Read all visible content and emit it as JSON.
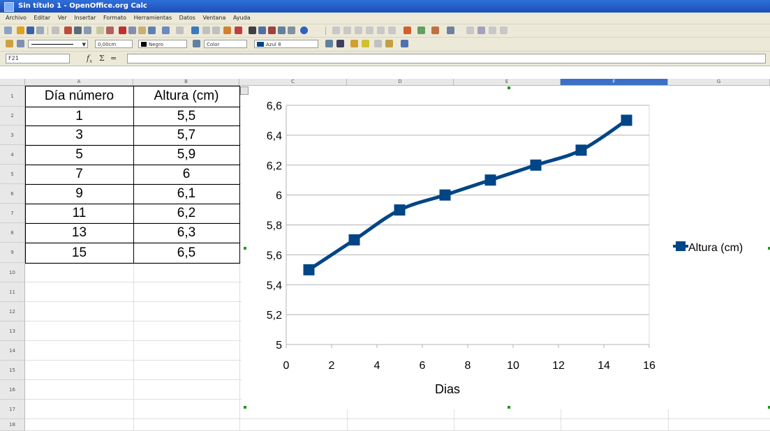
{
  "window": {
    "title": "Sin título 1 - OpenOffice.org Calc"
  },
  "menu": [
    "Archivo",
    "Editar",
    "Ver",
    "Insertar",
    "Formato",
    "Herramientas",
    "Datos",
    "Ventana",
    "Ayuda"
  ],
  "format_toolbar": {
    "line_width": "0,00cm",
    "line_color": "Negro",
    "area_mode": "Color",
    "area_color": "Azul 8"
  },
  "formula_bar": {
    "name_box": "F21",
    "formula": ""
  },
  "sheet": {
    "columns": [
      "A",
      "B",
      "C",
      "D",
      "E",
      "F",
      "G"
    ],
    "selected_column": "F",
    "rows": [
      "1",
      "2",
      "3",
      "4",
      "5",
      "6",
      "7",
      "8",
      "9",
      "10",
      "11",
      "12",
      "13",
      "14",
      "15",
      "16",
      "17",
      "18"
    ],
    "table": {
      "header": [
        "Día número",
        "Altura (cm)"
      ],
      "rows": [
        [
          "1",
          "5,5"
        ],
        [
          "3",
          "5,7"
        ],
        [
          "5",
          "5,9"
        ],
        [
          "7",
          "6"
        ],
        [
          "9",
          "6,1"
        ],
        [
          "11",
          "6,2"
        ],
        [
          "13",
          "6,3"
        ],
        [
          "15",
          "6,5"
        ]
      ]
    }
  },
  "chart_data": {
    "type": "line",
    "xlabel": "Dias",
    "ylabel": "",
    "xlim": [
      0,
      16
    ],
    "ylim": [
      5,
      6.6
    ],
    "xticks": [
      0,
      2,
      4,
      6,
      8,
      10,
      12,
      14,
      16
    ],
    "yticks": [
      5,
      5.2,
      5.4,
      5.6,
      5.8,
      6,
      6.2,
      6.4,
      6.6
    ],
    "xtick_labels": [
      "0",
      "2",
      "4",
      "6",
      "8",
      "10",
      "12",
      "14",
      "16"
    ],
    "ytick_labels": [
      "5",
      "5,2",
      "5,4",
      "5,6",
      "5,8",
      "6",
      "6,2",
      "6,4",
      "6,6"
    ],
    "grid": true,
    "legend_position": "right",
    "series": [
      {
        "name": "Altura (cm)",
        "color": "#004586",
        "marker": "square",
        "x": [
          1,
          3,
          5,
          7,
          9,
          11,
          13,
          15
        ],
        "y": [
          5.5,
          5.7,
          5.9,
          6.0,
          6.1,
          6.2,
          6.3,
          6.5
        ]
      }
    ]
  }
}
